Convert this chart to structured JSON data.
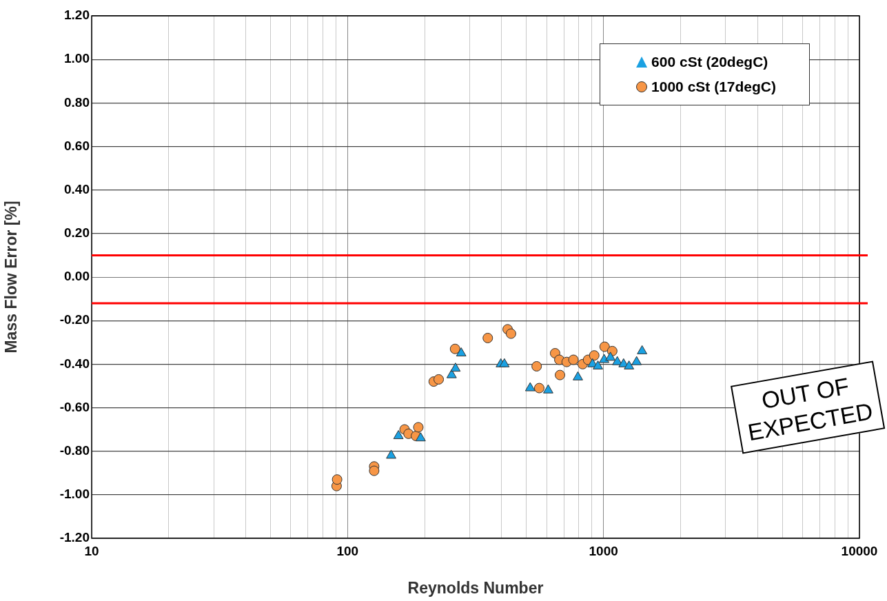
{
  "chart_data": {
    "type": "scatter",
    "xlabel": "Reynolds Number",
    "ylabel": "Mass Flow Error [%]",
    "log": "x",
    "xlim": [
      10,
      10000
    ],
    "xticks": [
      10,
      {
        "value": 20,
        "label": null
      },
      {
        "value": 30,
        "label": null
      },
      {
        "value": 40,
        "label": null
      },
      {
        "value": 50,
        "label": null
      },
      {
        "value": 60,
        "label": null
      },
      {
        "value": 70,
        "label": null
      },
      {
        "value": 80,
        "label": null
      },
      {
        "value": 90,
        "label": null
      },
      100,
      {
        "value": 200,
        "label": null
      },
      {
        "value": 300,
        "label": null
      },
      {
        "value": 400,
        "label": null
      },
      {
        "value": 500,
        "label": null
      },
      {
        "value": 600,
        "label": null
      },
      {
        "value": 700,
        "label": null
      },
      {
        "value": 800,
        "label": null
      },
      {
        "value": 900,
        "label": null
      },
      1000,
      {
        "value": 2000,
        "label": null
      },
      {
        "value": 3000,
        "label": null
      },
      {
        "value": 4000,
        "label": null
      },
      {
        "value": 5000,
        "label": null
      },
      {
        "value": 6000,
        "label": null
      },
      {
        "value": 7000,
        "label": null
      },
      {
        "value": 8000,
        "label": null
      },
      {
        "value": 9000,
        "label": null
      },
      10000
    ],
    "ylim": [
      -1.2,
      1.2
    ],
    "yticks": [
      {
        "value": -1.2,
        "label": "-1.20"
      },
      {
        "value": -1.0,
        "label": "-1.00"
      },
      {
        "value": -0.8,
        "label": "-0.80"
      },
      {
        "value": -0.6,
        "label": "-0.60"
      },
      {
        "value": -0.4,
        "label": "-0.40"
      },
      {
        "value": -0.2,
        "label": "-0.20"
      },
      {
        "value": 0,
        "label": "0.00"
      },
      {
        "value": 0.2,
        "label": "0.20"
      },
      {
        "value": 0.4,
        "label": "0.40"
      },
      {
        "value": 0.6,
        "label": "0.60"
      },
      {
        "value": 0.8,
        "label": "0.80"
      },
      {
        "value": 1.0,
        "label": "1.00"
      },
      {
        "value": 1.2,
        "label": "1.20"
      }
    ],
    "grid": true,
    "legend": "top right",
    "series": [
      {
        "name": "600 cSt (20degC)",
        "color": "#1ba1e2",
        "marker": "triangle",
        "x": [
          148,
          158,
          193,
          255,
          264,
          278,
          397,
          410,
          517,
          608,
          794,
          906,
          951,
          1006,
          1064,
          1132,
          1198,
          1258,
          1347,
          1415
        ],
        "values": [
          -0.82,
          -0.73,
          -0.74,
          -0.45,
          -0.42,
          -0.35,
          -0.4,
          -0.4,
          -0.51,
          -0.52,
          -0.46,
          -0.4,
          -0.41,
          -0.38,
          -0.37,
          -0.39,
          -0.4,
          -0.41,
          -0.39,
          -0.34
        ]
      },
      {
        "name": "1000 cSt (17degC)",
        "color": "#f79646",
        "marker": "circle",
        "x": [
          90.6,
          91,
          127,
          127,
          167,
          173,
          185,
          189,
          217,
          227,
          263,
          353,
          422,
          435,
          548,
          561,
          647,
          672,
          676,
          718,
          763,
          829,
          870,
          920,
          1010,
          1082
        ],
        "values": [
          -0.96,
          -0.93,
          -0.87,
          -0.89,
          -0.7,
          -0.72,
          -0.73,
          -0.69,
          -0.48,
          -0.47,
          -0.33,
          -0.28,
          -0.24,
          -0.26,
          -0.41,
          -0.51,
          -0.35,
          -0.38,
          -0.45,
          -0.39,
          -0.38,
          -0.4,
          -0.38,
          -0.36,
          -0.32,
          -0.34
        ]
      }
    ],
    "ref_lines": [
      {
        "axis": "y",
        "value": 0.1,
        "color": "#ff0000"
      },
      {
        "axis": "y",
        "value": -0.12,
        "color": "#ff0000"
      }
    ],
    "annotations": [
      "OUT OF EXPECTED"
    ]
  }
}
